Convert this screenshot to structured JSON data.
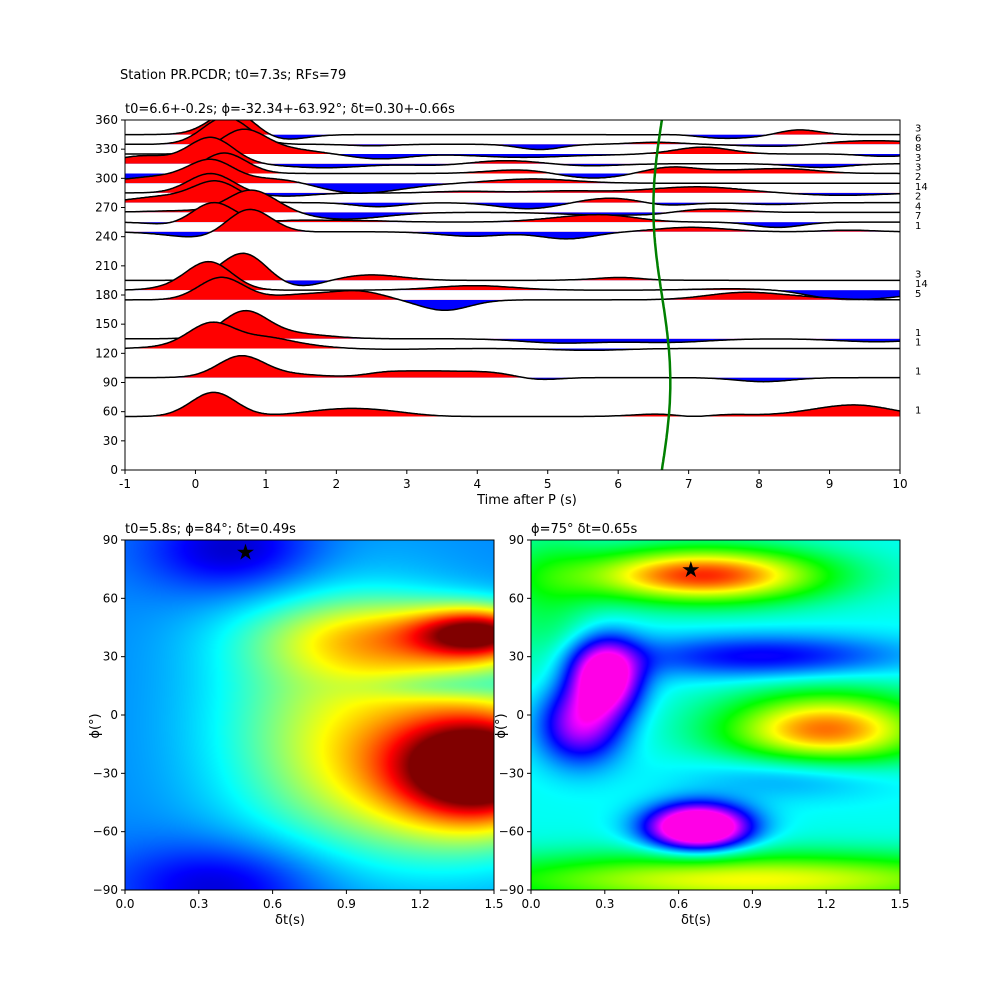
{
  "header": {
    "title": "Station PR.PCDR; t0=7.3s; RFs=79"
  },
  "top": {
    "subtitle": "t0=6.6+-0.2s; ϕ=-32.34+-63.92°; δt=0.30+-0.66s",
    "xlabel": "Time after P (s)",
    "xticks": [
      "-1",
      "0",
      "1",
      "2",
      "3",
      "4",
      "5",
      "6",
      "7",
      "8",
      "9",
      "10"
    ],
    "yticks": [
      "0",
      "30",
      "60",
      "90",
      "120",
      "150",
      "180",
      "210",
      "240",
      "270",
      "300",
      "330",
      "360"
    ],
    "count_labels": [
      "3",
      "6",
      "8",
      "3",
      "3",
      "2",
      "14",
      "2",
      "4",
      "7",
      "1",
      "3",
      "14",
      "5",
      "1",
      "1",
      "1",
      "1"
    ]
  },
  "left": {
    "subtitle": "t0=5.8s; ϕ=84°; δt=0.49s",
    "xlabel": "δt(s)",
    "ylabel": "ϕ(°)",
    "xticks": [
      "0.0",
      "0.3",
      "0.6",
      "0.9",
      "1.2",
      "1.5"
    ],
    "yticks": [
      "−90",
      "−60",
      "−30",
      "0",
      "30",
      "60",
      "90"
    ],
    "star_label": "★"
  },
  "right": {
    "subtitle": "ϕ=75° δt=0.65s",
    "xlabel": "δt(s)",
    "ylabel": "ϕ(°)",
    "xticks": [
      "0.0",
      "0.3",
      "0.6",
      "0.9",
      "1.2",
      "1.5"
    ],
    "yticks": [
      "−90",
      "−60",
      "−30",
      "0",
      "30",
      "60",
      "90"
    ],
    "star_label": "★"
  },
  "chart_data": [
    {
      "type": "line",
      "title": "t0=6.6+-0.2s; ϕ=-32.34+-63.92°; δt=0.30+-0.66s",
      "xlabel": "Time after P (s)",
      "ylabel": "",
      "xlim": [
        -1,
        10
      ],
      "ylim": [
        0,
        360
      ],
      "positive_fill": "#ff0000",
      "negative_fill": "#0000ff",
      "curve_color": "#008000",
      "series": [
        {
          "baseline": 345,
          "count": 3
        },
        {
          "baseline": 335,
          "count": 6
        },
        {
          "baseline": 325,
          "count": 8
        },
        {
          "baseline": 315,
          "count": 3
        },
        {
          "baseline": 305,
          "count": 3
        },
        {
          "baseline": 295,
          "count": 2
        },
        {
          "baseline": 285,
          "count": 14
        },
        {
          "baseline": 275,
          "count": 2
        },
        {
          "baseline": 265,
          "count": 4
        },
        {
          "baseline": 255,
          "count": 7
        },
        {
          "baseline": 245,
          "count": 1
        },
        {
          "baseline": 195,
          "count": 3
        },
        {
          "baseline": 185,
          "count": 14
        },
        {
          "baseline": 175,
          "count": 5
        },
        {
          "baseline": 135,
          "count": 1
        },
        {
          "baseline": 125,
          "count": 1
        },
        {
          "baseline": 95,
          "count": 1
        },
        {
          "baseline": 55,
          "count": 1
        }
      ],
      "t0_curve": {
        "center": 6.62,
        "amplitude": 0.12
      }
    },
    {
      "type": "heatmap",
      "title": "t0=5.8s; ϕ=84°; δt=0.49s",
      "xlabel": "δt(s)",
      "ylabel": "ϕ(°)",
      "xlim": [
        0,
        1.5
      ],
      "ylim": [
        -90,
        90
      ],
      "colormap": "jet",
      "star": {
        "x": 0.49,
        "y": 84
      }
    },
    {
      "type": "heatmap",
      "title": "ϕ=75° δt=0.65s",
      "xlabel": "δt(s)",
      "ylabel": "ϕ(°)",
      "xlim": [
        0,
        1.5
      ],
      "ylim": [
        -90,
        90
      ],
      "colormap": "hsv",
      "star": {
        "x": 0.65,
        "y": 75
      }
    }
  ]
}
